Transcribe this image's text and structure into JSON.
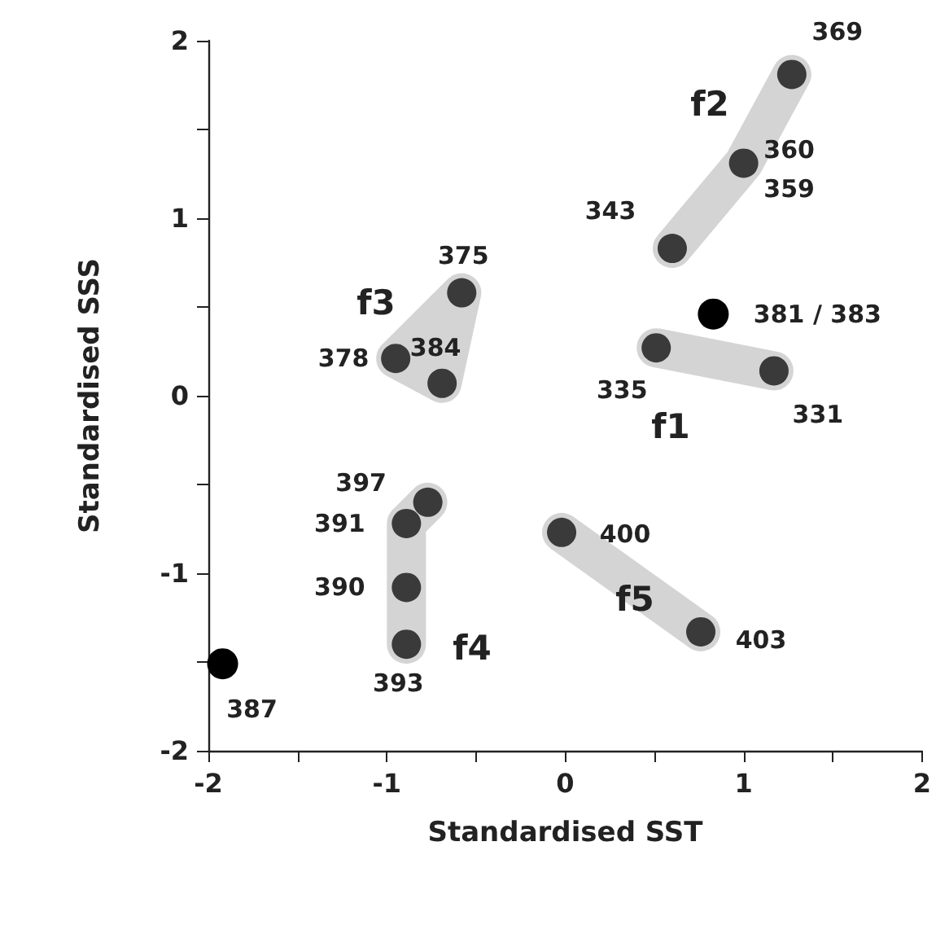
{
  "chart_data": {
    "type": "scatter",
    "xlabel": "Standardised SST",
    "ylabel": "Standardised SSS",
    "xlim": [
      -2,
      2
    ],
    "ylim": [
      -2,
      2
    ],
    "xticks": [
      -2,
      {
        "value": -1.5,
        "label": null
      },
      -1,
      {
        "value": -0.5,
        "label": null
      },
      0,
      {
        "value": 0.5,
        "label": null
      },
      1,
      {
        "value": 1.5,
        "label": null
      },
      2
    ],
    "yticks": [
      -2,
      {
        "value": -1.5,
        "label": null
      },
      -1,
      {
        "value": -0.5,
        "label": null
      },
      0,
      {
        "value": 0.5,
        "label": null
      },
      1,
      {
        "value": 1.5,
        "label": null
      },
      2
    ],
    "grid": false,
    "marker": "circle",
    "series": [
      {
        "color": "#3a3a3a",
        "x": [
          1.27,
          1.0,
          0.6,
          0.51,
          1.17,
          -0.58,
          -0.95,
          -0.69,
          -0.77,
          -0.89,
          -0.89,
          -0.89,
          -0.02,
          0.76
        ],
        "values": [
          1.81,
          1.31,
          0.83,
          0.27,
          0.14,
          0.58,
          0.21,
          0.07,
          -0.6,
          -0.72,
          -1.08,
          -1.4,
          -0.77,
          -1.33
        ]
      },
      {
        "color": "#000000",
        "x": [
          0.83,
          -1.92
        ],
        "values": [
          0.46,
          -1.51
        ]
      }
    ],
    "annotations": [
      "f1",
      "f2",
      "f3",
      "f4",
      "f5",
      {
        "text": "369",
        "x": 1.27,
        "y": 1.81
      },
      {
        "text": "360",
        "x": 1.0,
        "y": 1.31
      },
      {
        "text": "359",
        "x": 1.0,
        "y": 1.31
      },
      {
        "text": "343",
        "x": 0.6,
        "y": 0.83
      },
      {
        "text": "381 / 383",
        "x": 0.83,
        "y": 0.46
      },
      {
        "text": "335",
        "x": 0.51,
        "y": 0.27
      },
      {
        "text": "331",
        "x": 1.17,
        "y": 0.14
      },
      {
        "text": "375",
        "x": -0.58,
        "y": 0.58
      },
      {
        "text": "378",
        "x": -0.95,
        "y": 0.21
      },
      {
        "text": "384",
        "x": -0.69,
        "y": 0.07
      },
      {
        "text": "397",
        "x": -0.77,
        "y": -0.6
      },
      {
        "text": "391",
        "x": -0.89,
        "y": -0.72
      },
      {
        "text": "390",
        "x": -0.89,
        "y": -1.08
      },
      {
        "text": "393",
        "x": -0.89,
        "y": -1.4
      },
      {
        "text": "400",
        "x": -0.02,
        "y": -0.77
      },
      {
        "text": "403",
        "x": 0.76,
        "y": -1.33
      },
      {
        "text": "387",
        "x": -1.92,
        "y": -1.51
      }
    ]
  }
}
